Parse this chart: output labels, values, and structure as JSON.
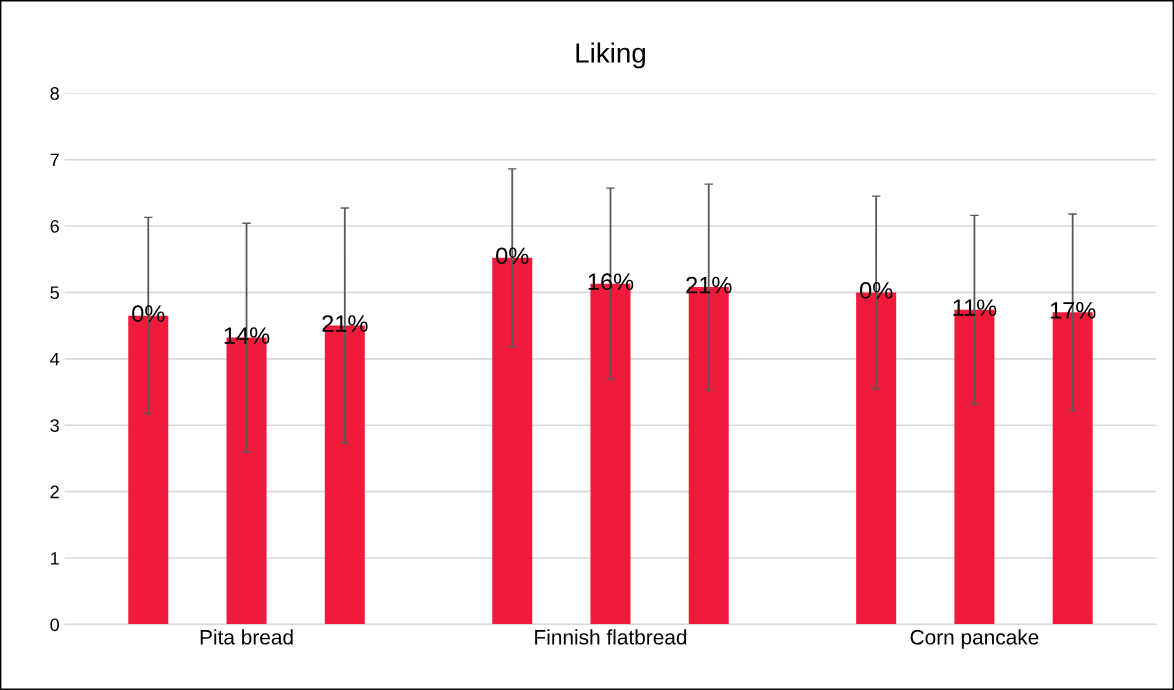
{
  "chart_data": {
    "type": "bar",
    "title": "Liking",
    "categories": [
      "Pita bread",
      "Finnish flatbread",
      "Corn pancake"
    ],
    "series": [
      {
        "color": "#f01a3a",
        "values": [
          4.65,
          5.52,
          5.0
        ],
        "errors": [
          1.48,
          1.34,
          1.45
        ]
      },
      {
        "color": "#f01a3a",
        "values": [
          4.32,
          5.13,
          4.74
        ],
        "errors": [
          1.72,
          1.44,
          1.42
        ]
      },
      {
        "color": "#f01a3a",
        "values": [
          4.5,
          5.08,
          4.7
        ],
        "errors": [
          1.77,
          1.55,
          1.48
        ]
      }
    ],
    "annotations": [
      "0%",
      "14%",
      "21%",
      "0%",
      "16%",
      "21%",
      "0%",
      "11%",
      "17%"
    ],
    "ylim": [
      0,
      8
    ],
    "yticks": [
      0,
      1,
      2,
      3,
      4,
      5,
      6,
      7,
      8
    ],
    "grid": "y",
    "legend": false
  }
}
